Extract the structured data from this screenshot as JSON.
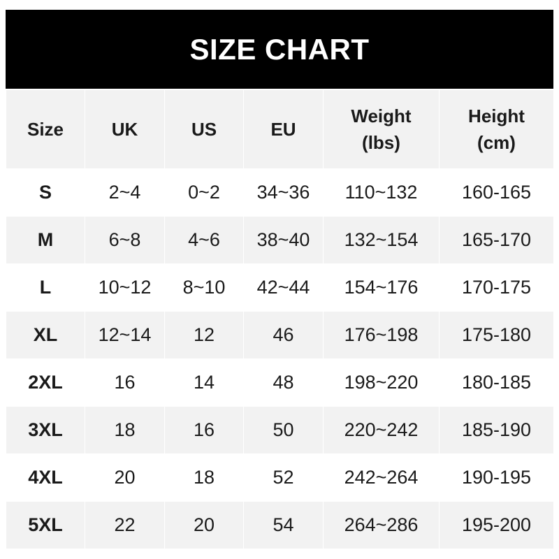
{
  "title": "SIZE CHART",
  "headers": [
    {
      "line1": "Size",
      "line2": ""
    },
    {
      "line1": "UK",
      "line2": ""
    },
    {
      "line1": "US",
      "line2": ""
    },
    {
      "line1": "EU",
      "line2": ""
    },
    {
      "line1": "Weight",
      "line2": "(lbs)"
    },
    {
      "line1": "Height",
      "line2": "(cm)"
    }
  ],
  "rows": [
    [
      "S",
      "2~4",
      "0~2",
      "34~36",
      "110~132",
      "160-165"
    ],
    [
      "M",
      "6~8",
      "4~6",
      "38~40",
      "132~154",
      "165-170"
    ],
    [
      "L",
      "10~12",
      "8~10",
      "42~44",
      "154~176",
      "170-175"
    ],
    [
      "XL",
      "12~14",
      "12",
      "46",
      "176~198",
      "175-180"
    ],
    [
      "2XL",
      "16",
      "14",
      "48",
      "198~220",
      "180-185"
    ],
    [
      "3XL",
      "18",
      "16",
      "50",
      "220~242",
      "185-190"
    ],
    [
      "4XL",
      "20",
      "18",
      "52",
      "242~264",
      "190-195"
    ],
    [
      "5XL",
      "22",
      "20",
      "54",
      "264~286",
      "195-200"
    ]
  ],
  "colors": {
    "header_bg": "#000000",
    "row_alt": "#f2f2f2",
    "row_plain": "#ffffff"
  }
}
